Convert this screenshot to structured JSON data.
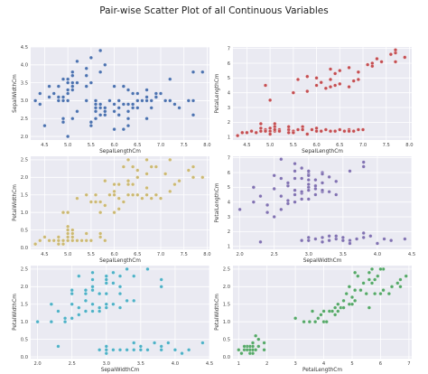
{
  "title": "Pair-wise Scatter Plot of all Continuous Variables",
  "colors": {
    "axes_bg": "#eaeaf2",
    "grid": "#ffffff",
    "tick_text": "#444444",
    "label_text": "#333333"
  },
  "chart_data": [
    {
      "type": "scatter",
      "xlabel": "SepalLengthCm",
      "ylabel": "SepalWidthCm",
      "color": "#4c72b0",
      "xlim": [
        4.2,
        8.05
      ],
      "ylim": [
        1.9,
        4.5
      ],
      "xticks": [
        4.5,
        5.0,
        5.5,
        6.0,
        6.5,
        7.0,
        7.5,
        8.0
      ],
      "xtick_labels": [
        "4.5",
        "5.0",
        "5.5",
        "6.0",
        "6.5",
        "7.0",
        "7.5",
        "8.0"
      ],
      "yticks": [
        2.0,
        2.5,
        3.0,
        3.5,
        4.0,
        4.5
      ],
      "ytick_labels": [
        "2.0",
        "2.5",
        "3.0",
        "3.5",
        "4.0",
        "4.5"
      ],
      "x": [
        4.3,
        4.4,
        4.4,
        4.5,
        4.6,
        4.6,
        4.7,
        4.8,
        4.8,
        4.8,
        4.9,
        4.9,
        4.9,
        5.0,
        5.0,
        5.0,
        5.0,
        5.0,
        5.1,
        5.1,
        5.1,
        5.1,
        5.1,
        5.2,
        5.2,
        5.4,
        5.4,
        5.4,
        5.4,
        5.5,
        5.5,
        5.7,
        5.7,
        5.8,
        4.9,
        5.0,
        5.1,
        5.2,
        5.4,
        5.5,
        5.6,
        5.6,
        5.7,
        5.7,
        5.8,
        5.8,
        5.9,
        6.0,
        6.0,
        6.0,
        6.1,
        6.1,
        6.2,
        6.3,
        6.3,
        6.4,
        6.5,
        6.6,
        6.7,
        6.7,
        6.7,
        6.8,
        6.9,
        7.0,
        5.6,
        5.8,
        6.0,
        6.1,
        6.2,
        6.3,
        6.3,
        6.4,
        6.4,
        6.5,
        6.5,
        6.7,
        6.7,
        6.8,
        6.9,
        6.9,
        7.1,
        7.2,
        7.2,
        7.3,
        7.4,
        7.6,
        7.7,
        7.7,
        7.7,
        7.9,
        5.5,
        5.6,
        5.8,
        6.2,
        6.3,
        5.7,
        4.9,
        5.6,
        6.0,
        6.1
      ],
      "y": [
        3.0,
        2.9,
        3.2,
        2.3,
        3.1,
        3.4,
        3.2,
        3.0,
        3.1,
        3.4,
        3.0,
        3.1,
        3.6,
        3.0,
        3.2,
        3.3,
        3.5,
        3.6,
        3.3,
        3.5,
        3.7,
        3.8,
        3.4,
        3.5,
        4.1,
        3.4,
        3.7,
        3.9,
        3.0,
        3.5,
        4.2,
        3.8,
        4.4,
        4.0,
        2.4,
        2.0,
        2.5,
        2.7,
        3.0,
        2.3,
        2.5,
        2.9,
        2.6,
        2.8,
        2.7,
        2.6,
        3.0,
        2.2,
        2.7,
        3.4,
        2.8,
        3.0,
        2.2,
        2.3,
        3.3,
        2.9,
        2.8,
        3.0,
        3.1,
        2.5,
        3.0,
        2.8,
        3.1,
        3.2,
        2.8,
        2.7,
        2.2,
        2.6,
        3.4,
        2.5,
        2.7,
        2.8,
        3.2,
        3.0,
        3.2,
        3.3,
        2.5,
        3.0,
        3.1,
        3.2,
        3.0,
        3.0,
        3.6,
        2.9,
        2.8,
        3.0,
        2.6,
        3.0,
        3.8,
        3.8,
        2.4,
        3.0,
        2.8,
        2.9,
        2.9,
        2.9,
        2.5,
        2.7,
        2.9,
        2.6
      ]
    },
    {
      "type": "scatter",
      "xlabel": "SepalLengthCm",
      "ylabel": "PetalLengthCm",
      "color": "#c44e52",
      "xlim": [
        4.2,
        8.05
      ],
      "ylim": [
        0.8,
        7.1
      ],
      "xticks": [
        4.5,
        5.0,
        5.5,
        6.0,
        6.5,
        7.0,
        7.5,
        8.0
      ],
      "xtick_labels": [
        "4.5",
        "5.0",
        "5.5",
        "6.0",
        "6.5",
        "7.0",
        "7.5",
        "8.0"
      ],
      "yticks": [
        1,
        2,
        3,
        4,
        5,
        6,
        7
      ],
      "ytick_labels": [
        "1",
        "2",
        "3",
        "4",
        "5",
        "6",
        "7"
      ],
      "x": [
        4.3,
        4.4,
        4.5,
        4.6,
        4.7,
        4.8,
        4.8,
        4.9,
        5.0,
        5.0,
        5.1,
        5.1,
        5.1,
        5.2,
        5.4,
        5.4,
        5.5,
        5.7,
        5.7,
        5.8,
        5.0,
        5.1,
        4.8,
        4.9,
        5.0,
        5.1,
        5.2,
        5.4,
        5.5,
        5.6,
        5.7,
        5.8,
        5.9,
        6.0,
        6.0,
        6.1,
        6.2,
        6.3,
        6.4,
        6.5,
        6.6,
        6.7,
        6.7,
        6.8,
        6.9,
        7.0,
        5.5,
        5.8,
        6.1,
        6.3,
        6.0,
        6.2,
        6.3,
        6.4,
        6.5,
        6.7,
        6.8,
        6.9,
        7.1,
        7.2,
        7.3,
        7.4,
        7.6,
        7.7,
        7.7,
        7.7,
        7.9,
        5.6,
        5.8,
        6.4,
        6.5,
        6.3,
        6.7,
        7.2,
        6.9,
        6.0,
        4.9,
        5.0
      ],
      "y": [
        1.1,
        1.3,
        1.3,
        1.4,
        1.3,
        1.4,
        1.6,
        1.5,
        1.4,
        1.6,
        1.5,
        1.7,
        1.9,
        1.5,
        1.5,
        1.7,
        1.4,
        1.7,
        1.5,
        1.2,
        1.6,
        1.4,
        1.9,
        1.4,
        1.2,
        1.5,
        1.4,
        1.3,
        1.3,
        1.5,
        1.5,
        1.2,
        1.5,
        1.6,
        1.4,
        1.4,
        1.5,
        1.4,
        1.4,
        1.5,
        1.4,
        1.5,
        1.4,
        1.4,
        1.5,
        1.5,
        4.0,
        4.1,
        4.7,
        4.9,
        4.5,
        4.3,
        4.4,
        4.5,
        4.6,
        4.4,
        4.8,
        4.9,
        5.9,
        6.0,
        6.3,
        6.1,
        6.6,
        6.7,
        6.9,
        6.1,
        6.4,
        4.9,
        5.1,
        5.3,
        5.5,
        5.6,
        5.7,
        5.8,
        5.4,
        5.0,
        4.5,
        3.5
      ]
    },
    {
      "type": "scatter",
      "xlabel": "SepalLengthCm",
      "ylabel": "PetalWidthCm",
      "color": "#ccb974",
      "xlim": [
        4.2,
        8.05
      ],
      "ylim": [
        -0.05,
        2.6
      ],
      "xticks": [
        4.5,
        5.0,
        5.5,
        6.0,
        6.5,
        7.0,
        7.5,
        8.0
      ],
      "xtick_labels": [
        "4.5",
        "5.0",
        "5.5",
        "6.0",
        "6.5",
        "7.0",
        "7.5",
        "8.0"
      ],
      "yticks": [
        0.0,
        0.5,
        1.0,
        1.5,
        2.0,
        2.5
      ],
      "ytick_labels": [
        "0.0",
        "0.5",
        "1.0",
        "1.5",
        "2.0",
        "2.5"
      ],
      "x": [
        4.3,
        4.4,
        4.5,
        4.6,
        4.7,
        4.8,
        4.8,
        4.9,
        4.9,
        5.0,
        5.0,
        5.0,
        5.1,
        5.1,
        5.1,
        5.2,
        5.3,
        5.4,
        5.4,
        5.5,
        5.7,
        5.7,
        5.8,
        4.8,
        5.0,
        5.1,
        5.0,
        4.9,
        5.0,
        5.2,
        5.4,
        5.5,
        5.6,
        5.7,
        5.8,
        5.9,
        6.0,
        6.0,
        6.1,
        6.2,
        6.3,
        6.4,
        6.5,
        6.6,
        6.7,
        6.7,
        6.8,
        6.9,
        7.0,
        5.6,
        5.8,
        6.1,
        6.3,
        6.0,
        6.2,
        6.3,
        6.4,
        6.5,
        6.7,
        6.8,
        6.9,
        7.1,
        7.2,
        7.3,
        7.4,
        7.6,
        7.7,
        7.7,
        7.9,
        6.4,
        6.5,
        6.3,
        6.7,
        7.2,
        6.0,
        5.8,
        6.1,
        5.7
      ],
      "y": [
        0.1,
        0.2,
        0.3,
        0.2,
        0.2,
        0.1,
        0.2,
        0.1,
        0.2,
        0.2,
        0.4,
        0.6,
        0.2,
        0.3,
        0.4,
        0.2,
        0.2,
        0.2,
        0.4,
        0.2,
        0.3,
        0.4,
        0.2,
        0.3,
        0.5,
        0.5,
        0.3,
        1.0,
        1.0,
        1.4,
        1.5,
        1.3,
        1.3,
        1.3,
        1.2,
        1.5,
        1.0,
        1.6,
        1.4,
        1.3,
        1.5,
        1.5,
        1.5,
        1.4,
        1.5,
        1.7,
        1.4,
        1.5,
        1.4,
        1.5,
        1.9,
        1.8,
        1.8,
        1.8,
        2.3,
        2.5,
        2.3,
        2.2,
        2.5,
        2.3,
        2.3,
        2.1,
        1.6,
        1.8,
        1.9,
        2.2,
        2.3,
        2.0,
        2.0,
        1.8,
        2.0,
        1.9,
        2.1,
        2.5,
        1.5,
        1.2,
        1.1,
        1.0
      ]
    },
    {
      "type": "scatter",
      "xlabel": "SepalWidthCm",
      "ylabel": "PetalLengthCm",
      "color": "#8172b2",
      "xlim": [
        1.9,
        4.5
      ],
      "ylim": [
        0.8,
        7.1
      ],
      "xticks": [
        2.0,
        2.5,
        3.0,
        3.5,
        4.0,
        4.5
      ],
      "xtick_labels": [
        "2.0",
        "2.5",
        "3.0",
        "3.5",
        "4.0",
        "4.5"
      ],
      "yticks": [
        1,
        2,
        3,
        4,
        5,
        6,
        7
      ],
      "ytick_labels": [
        "1",
        "2",
        "3",
        "4",
        "5",
        "6",
        "7"
      ],
      "x": [
        2.3,
        2.9,
        3.0,
        3.0,
        3.1,
        3.2,
        3.2,
        3.3,
        3.4,
        3.4,
        3.5,
        3.5,
        3.6,
        3.6,
        3.7,
        3.8,
        3.8,
        3.9,
        4.0,
        4.1,
        4.2,
        4.4,
        3.1,
        3.3,
        2.0,
        2.2,
        2.2,
        2.3,
        2.4,
        2.4,
        2.5,
        2.5,
        2.6,
        2.6,
        2.7,
        2.7,
        2.8,
        2.8,
        2.9,
        2.9,
        3.0,
        3.0,
        3.1,
        3.2,
        3.3,
        3.4,
        2.5,
        2.6,
        2.7,
        2.8,
        2.8,
        2.9,
        3.0,
        3.0,
        3.0,
        3.1,
        3.2,
        3.2,
        3.3,
        3.4,
        3.6,
        3.8,
        3.8,
        2.7,
        2.8,
        2.9,
        3.0,
        3.0,
        3.1,
        3.2,
        2.2,
        2.5,
        2.6,
        2.8,
        3.0,
        3.2,
        2.9,
        3.1,
        3.0
      ],
      "y": [
        1.3,
        1.4,
        1.4,
        1.6,
        1.5,
        1.3,
        1.6,
        1.4,
        1.5,
        1.7,
        1.4,
        1.6,
        1.4,
        1.2,
        1.5,
        1.6,
        1.9,
        1.7,
        1.2,
        1.5,
        1.4,
        1.5,
        1.5,
        1.7,
        3.5,
        4.0,
        5.0,
        4.4,
        3.3,
        3.8,
        3.0,
        4.9,
        3.5,
        4.4,
        3.9,
        5.1,
        4.0,
        4.8,
        4.2,
        4.6,
        4.2,
        5.0,
        4.5,
        4.7,
        4.7,
        4.5,
        5.8,
        6.9,
        5.3,
        5.6,
        6.6,
        5.6,
        5.5,
        5.9,
        6.1,
        5.5,
        5.3,
        6.0,
        5.7,
        5.4,
        6.1,
        6.4,
        6.7,
        4.1,
        4.5,
        4.7,
        4.8,
        5.2,
        4.9,
        4.8,
        5.0,
        4.9,
        5.6,
        6.1,
        6.1,
        5.9,
        6.3,
        5.1,
        5.8
      ]
    },
    {
      "type": "scatter",
      "xlabel": "SepalWidthCm",
      "ylabel": "PetalWidthCm",
      "color": "#4eb1c7",
      "xlim": [
        1.9,
        4.5
      ],
      "ylim": [
        -0.05,
        2.6
      ],
      "xticks": [
        2.0,
        2.5,
        3.0,
        3.5,
        4.0,
        4.5
      ],
      "xtick_labels": [
        "2.0",
        "2.5",
        "3.0",
        "3.5",
        "4.0",
        "4.5"
      ],
      "yticks": [
        0.0,
        0.5,
        1.0,
        1.5,
        2.0,
        2.5
      ],
      "ytick_labels": [
        "0.0",
        "0.5",
        "1.0",
        "1.5",
        "2.0",
        "2.5"
      ],
      "x": [
        2.3,
        2.9,
        3.0,
        3.0,
        3.1,
        3.2,
        3.3,
        3.4,
        3.4,
        3.5,
        3.5,
        3.6,
        3.7,
        3.8,
        3.8,
        3.9,
        4.0,
        4.1,
        4.2,
        4.4,
        3.0,
        3.4,
        2.0,
        2.2,
        2.2,
        2.3,
        2.4,
        2.4,
        2.5,
        2.5,
        2.6,
        2.6,
        2.7,
        2.7,
        2.8,
        2.8,
        2.9,
        2.9,
        3.0,
        3.0,
        3.1,
        3.2,
        3.3,
        3.4,
        2.5,
        2.6,
        2.7,
        2.8,
        2.8,
        2.9,
        3.0,
        3.0,
        3.0,
        3.1,
        3.2,
        3.2,
        3.3,
        3.4,
        3.6,
        3.8,
        3.8,
        2.7,
        2.8,
        2.9,
        3.0,
        3.0,
        3.1,
        3.2,
        2.2,
        2.5,
        2.6,
        2.8,
        3.2,
        2.9,
        3.1,
        3.0
      ],
      "y": [
        0.3,
        0.2,
        0.1,
        0.2,
        0.2,
        0.2,
        0.2,
        0.2,
        0.4,
        0.2,
        0.3,
        0.2,
        0.4,
        0.3,
        0.2,
        0.4,
        0.2,
        0.1,
        0.2,
        0.4,
        0.3,
        0.4,
        1.0,
        1.0,
        1.5,
        1.3,
        1.0,
        1.1,
        1.1,
        1.5,
        1.2,
        1.4,
        1.3,
        1.6,
        1.3,
        1.5,
        1.3,
        1.4,
        1.4,
        1.5,
        1.5,
        1.4,
        1.6,
        1.6,
        1.8,
        2.3,
        1.9,
        2.0,
        2.2,
        1.8,
        1.8,
        2.1,
        2.3,
        2.4,
        2.3,
        2.0,
        2.5,
        2.3,
        2.5,
        2.0,
        2.2,
        1.8,
        1.9,
        1.8,
        2.1,
        2.3,
        2.1,
        1.8,
        1.5,
        1.9,
        2.3,
        2.4,
        2.3,
        1.8,
        2.4,
        2.2
      ]
    },
    {
      "type": "scatter",
      "xlabel": "PetalLengthCm",
      "ylabel": "PetalWidthCm",
      "color": "#55a868",
      "xlim": [
        0.8,
        7.1
      ],
      "ylim": [
        -0.05,
        2.6
      ],
      "xticks": [
        1,
        2,
        3,
        4,
        5,
        6,
        7
      ],
      "xtick_labels": [
        "1",
        "2",
        "3",
        "4",
        "5",
        "6",
        "7"
      ],
      "yticks": [
        0.0,
        0.5,
        1.0,
        1.5,
        2.0,
        2.5
      ],
      "ytick_labels": [
        "0.0",
        "0.5",
        "1.0",
        "1.5",
        "2.0",
        "2.5"
      ],
      "x": [
        1.0,
        1.1,
        1.2,
        1.3,
        1.3,
        1.4,
        1.4,
        1.4,
        1.5,
        1.5,
        1.5,
        1.6,
        1.6,
        1.7,
        1.7,
        1.9,
        1.9,
        1.2,
        1.5,
        3.0,
        3.3,
        3.5,
        3.6,
        3.7,
        3.8,
        3.9,
        4.0,
        4.0,
        4.1,
        4.2,
        4.3,
        4.4,
        4.4,
        4.5,
        4.5,
        4.6,
        4.7,
        4.7,
        4.8,
        4.9,
        4.9,
        5.0,
        5.1,
        5.1,
        5.1,
        5.2,
        5.3,
        5.4,
        5.5,
        5.6,
        5.6,
        5.7,
        5.8,
        5.8,
        5.9,
        6.0,
        6.1,
        6.1,
        6.3,
        6.4,
        6.6,
        6.7,
        6.7,
        6.9,
        5.0,
        5.6,
        6.0,
        5.7
      ],
      "y": [
        0.2,
        0.1,
        0.2,
        0.2,
        0.3,
        0.1,
        0.2,
        0.3,
        0.1,
        0.2,
        0.4,
        0.2,
        0.6,
        0.3,
        0.5,
        0.2,
        0.4,
        0.3,
        0.3,
        1.1,
        1.0,
        1.0,
        1.3,
        1.0,
        1.1,
        1.2,
        1.0,
        1.3,
        1.0,
        1.3,
        1.3,
        1.2,
        1.4,
        1.3,
        1.5,
        1.4,
        1.4,
        1.6,
        1.8,
        1.5,
        2.0,
        1.7,
        1.6,
        1.9,
        2.4,
        2.3,
        1.9,
        2.1,
        1.8,
        1.4,
        2.2,
        2.5,
        1.8,
        2.2,
        2.3,
        1.8,
        1.9,
        2.5,
        1.8,
        2.0,
        2.1,
        2.2,
        2.0,
        2.3,
        1.5,
        2.4,
        2.5,
        2.1
      ]
    }
  ]
}
